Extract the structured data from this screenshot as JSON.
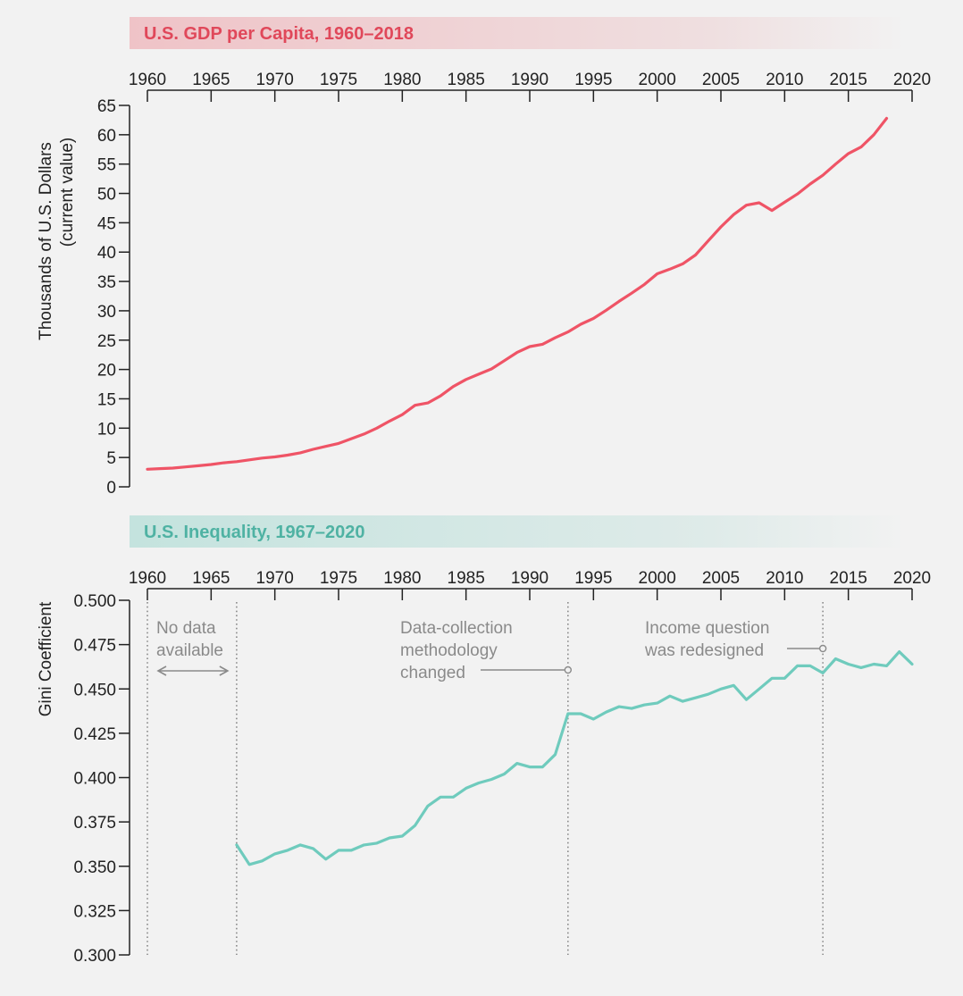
{
  "colors": {
    "gdp": "#ef5466",
    "gini": "#6fcbbd",
    "gdp_banner_text": "#e0485a",
    "gini_banner_text": "#4fb2a3",
    "axis": "#222222",
    "annotation": "#8a8a8a"
  },
  "chart_data": [
    {
      "type": "line",
      "title": "U.S. GDP per Capita, 1960–2018",
      "xlabel": "",
      "ylabel": "Thousands of U.S. Dollars",
      "ylabel_sub": "(current value)",
      "xlim": [
        1960,
        2020
      ],
      "ylim": [
        0,
        65
      ],
      "x_ticks": [
        1960,
        1965,
        1970,
        1975,
        1980,
        1985,
        1990,
        1995,
        2000,
        2005,
        2010,
        2015,
        2020
      ],
      "x_tick_labels": [
        "1960",
        "1965",
        "1970",
        "1975",
        "1980",
        "1985",
        "1990",
        "1995",
        "2000",
        "2005",
        "2010",
        "2015",
        "2020"
      ],
      "y_ticks": [
        0,
        5,
        10,
        15,
        20,
        25,
        30,
        35,
        40,
        45,
        50,
        55,
        60,
        65
      ],
      "y_tick_labels": [
        "0",
        "5",
        "10",
        "15",
        "20",
        "25",
        "30",
        "35",
        "40",
        "45",
        "50",
        "55",
        "60",
        "65"
      ],
      "x_axis_position": "top",
      "grid": false,
      "legend": "none",
      "series": [
        {
          "x": [
            1960,
            1961,
            1962,
            1963,
            1964,
            1965,
            1966,
            1967,
            1968,
            1969,
            1970,
            1971,
            1972,
            1973,
            1974,
            1975,
            1976,
            1977,
            1978,
            1979,
            1980,
            1981,
            1982,
            1983,
            1984,
            1985,
            1986,
            1987,
            1988,
            1989,
            1990,
            1991,
            1992,
            1993,
            1994,
            1995,
            1996,
            1997,
            1998,
            1999,
            2000,
            2001,
            2002,
            2003,
            2004,
            2005,
            2006,
            2007,
            2008,
            2009,
            2010,
            2011,
            2012,
            2013,
            2014,
            2015,
            2016,
            2017,
            2018
          ],
          "values": [
            3.0,
            3.1,
            3.2,
            3.4,
            3.6,
            3.8,
            4.1,
            4.3,
            4.6,
            4.9,
            5.1,
            5.4,
            5.8,
            6.4,
            6.9,
            7.4,
            8.2,
            9.0,
            10.0,
            11.2,
            12.3,
            13.9,
            14.3,
            15.5,
            17.1,
            18.3,
            19.2,
            20.1,
            21.5,
            22.9,
            23.9,
            24.3,
            25.4,
            26.4,
            27.7,
            28.7,
            30.1,
            31.6,
            33.0,
            34.5,
            36.3,
            37.1,
            38.0,
            39.5,
            41.9,
            44.3,
            46.4,
            48.0,
            48.4,
            47.1,
            48.5,
            49.9,
            51.6,
            53.1,
            55.0,
            56.8,
            57.9,
            60.0,
            62.8
          ]
        }
      ]
    },
    {
      "type": "line",
      "title": "U.S. Inequality, 1967–2020",
      "xlabel": "",
      "ylabel": "Gini Coefficient",
      "xlim": [
        1960,
        2020
      ],
      "ylim": [
        0.3,
        0.5
      ],
      "x_ticks": [
        1960,
        1965,
        1970,
        1975,
        1980,
        1985,
        1990,
        1995,
        2000,
        2005,
        2010,
        2015,
        2020
      ],
      "x_tick_labels": [
        "1960",
        "1965",
        "1970",
        "1975",
        "1980",
        "1985",
        "1990",
        "1995",
        "2000",
        "2005",
        "2010",
        "2015",
        "2020"
      ],
      "y_ticks": [
        0.3,
        0.325,
        0.35,
        0.375,
        0.4,
        0.425,
        0.45,
        0.475,
        0.5
      ],
      "y_tick_labels": [
        "0.300",
        "0.325",
        "0.350",
        "0.375",
        "0.400",
        "0.425",
        "0.450",
        "0.475",
        "0.500"
      ],
      "x_axis_position": "top",
      "grid": false,
      "legend": "none",
      "series": [
        {
          "x": [
            1967,
            1968,
            1969,
            1970,
            1971,
            1972,
            1973,
            1974,
            1975,
            1976,
            1977,
            1978,
            1979,
            1980,
            1981,
            1982,
            1983,
            1984,
            1985,
            1986,
            1987,
            1988,
            1989,
            1990,
            1991,
            1992,
            1993,
            1994,
            1995,
            1996,
            1997,
            1998,
            1999,
            2000,
            2001,
            2002,
            2003,
            2004,
            2005,
            2006,
            2007,
            2008,
            2009,
            2010,
            2011,
            2012,
            2013,
            2014,
            2015,
            2016,
            2017,
            2018,
            2019,
            2020
          ],
          "values": [
            0.362,
            0.351,
            0.353,
            0.357,
            0.359,
            0.362,
            0.36,
            0.354,
            0.359,
            0.359,
            0.362,
            0.363,
            0.366,
            0.367,
            0.373,
            0.384,
            0.389,
            0.389,
            0.394,
            0.397,
            0.399,
            0.402,
            0.408,
            0.406,
            0.406,
            0.413,
            0.436,
            0.436,
            0.433,
            0.437,
            0.44,
            0.439,
            0.441,
            0.442,
            0.446,
            0.443,
            0.445,
            0.447,
            0.45,
            0.452,
            0.444,
            0.45,
            0.456,
            0.456,
            0.463,
            0.463,
            0.459,
            0.467,
            0.464,
            0.462,
            0.464,
            0.463,
            0.471,
            0.464
          ]
        }
      ],
      "reference_lines": [
        {
          "x": 1960
        },
        {
          "x": 1967
        },
        {
          "x": 1993
        },
        {
          "x": 2013
        }
      ],
      "annotations": [
        {
          "lines": [
            "No data",
            "available"
          ],
          "range": [
            1960,
            1967
          ]
        },
        {
          "lines": [
            "Data-collection",
            "methodology",
            "changed"
          ],
          "x": 1993
        },
        {
          "lines": [
            "Income question",
            "was redesigned"
          ],
          "x": 2013
        }
      ]
    }
  ]
}
